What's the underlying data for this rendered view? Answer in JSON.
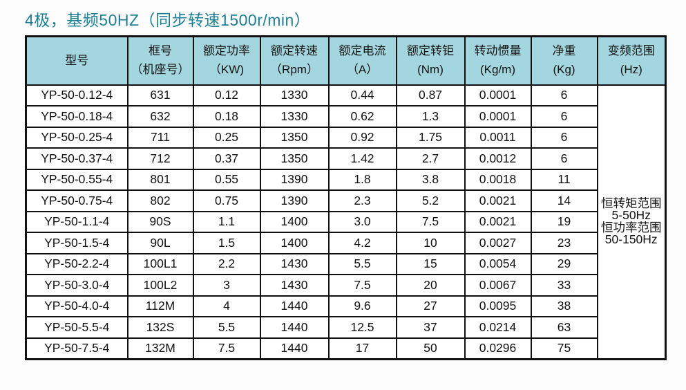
{
  "page": {
    "title": "4极，基频50HZ（同步转速1500r/min）",
    "title_color": "#1e7f94",
    "header_bg_color": "#a3d6de",
    "border_color": "#111111"
  },
  "table": {
    "headers": [
      {
        "line1": "型号",
        "line2": ""
      },
      {
        "line1": "框号",
        "line2": "（机座号）"
      },
      {
        "line1": "额定功率",
        "line2": "（KW)"
      },
      {
        "line1": "额定转速",
        "line2": "（Rpm）"
      },
      {
        "line1": "额定电流",
        "line2": "（A）"
      },
      {
        "line1": "额定转钜",
        "line2": "(Nm)"
      },
      {
        "line1": "转动惯量",
        "line2": "(Kg/m)"
      },
      {
        "line1": "净重",
        "line2": "(Kg)"
      },
      {
        "line1": "变频范围",
        "line2": "(Hz)"
      }
    ],
    "rows": [
      [
        "YP-50-0.12-4",
        "631",
        "0.12",
        "1330",
        "0.44",
        "0.87",
        "0.0001",
        "6"
      ],
      [
        "YP-50-0.18-4",
        "632",
        "0.18",
        "1330",
        "0.62",
        "1.3",
        "0.0001",
        "6"
      ],
      [
        "YP-50-0.25-4",
        "711",
        "0.25",
        "1350",
        "0.92",
        "1.75",
        "0.0011",
        "6"
      ],
      [
        "YP-50-0.37-4",
        "712",
        "0.37",
        "1350",
        "1.42",
        "2.7",
        "0.0012",
        "6"
      ],
      [
        "YP-50-0.55-4",
        "801",
        "0.55",
        "1390",
        "1.8",
        "3.8",
        "0.0018",
        "11"
      ],
      [
        "YP-50-0.75-4",
        "802",
        "0.75",
        "1390",
        "2.3",
        "5.2",
        "0.0021",
        "14"
      ],
      [
        "YP-50-1.1-4",
        "90S",
        "1.1",
        "1400",
        "3.0",
        "7.5",
        "0.0021",
        "19"
      ],
      [
        "YP-50-1.5-4",
        "90L",
        "1.5",
        "1400",
        "4.2",
        "10",
        "0.0027",
        "23"
      ],
      [
        "YP-50-2.2-4",
        "100L1",
        "2.2",
        "1430",
        "5.5",
        "15",
        "0.0054",
        "29"
      ],
      [
        "YP-50-3.0-4",
        "100L2",
        "3",
        "1430",
        "7.5",
        "20",
        "0.0067",
        "33"
      ],
      [
        "YP-50-4.0-4",
        "112M",
        "4",
        "1440",
        "9.6",
        "27",
        "0.0095",
        "38"
      ],
      [
        "YP-50-5.5-4",
        "132S",
        "5.5",
        "1440",
        "12.5",
        "37",
        "0.0214",
        "63"
      ],
      [
        "YP-50-7.5-4",
        "132M",
        "7.5",
        "1440",
        "17",
        "50",
        "0.0296",
        "75"
      ]
    ],
    "freq_range_lines": [
      "恒转矩范围",
      "5-50Hz",
      "恒功率范围",
      "50-150Hz"
    ]
  }
}
